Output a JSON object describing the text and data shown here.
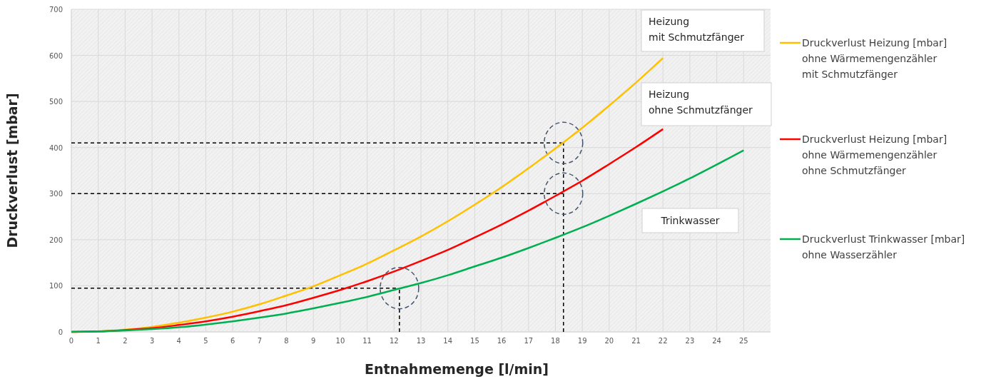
{
  "chart_data": {
    "type": "line",
    "xlabel": "Entnahmemenge [l/min]",
    "ylabel": "Druckverlust [mbar]",
    "xlim": [
      0,
      26
    ],
    "xticks": [
      0,
      1,
      2,
      3,
      4,
      5,
      6,
      7,
      8,
      9,
      10,
      11,
      12,
      13,
      14,
      15,
      16,
      17,
      18,
      19,
      20,
      21,
      22,
      23,
      24,
      25
    ],
    "ylim": [
      0,
      700
    ],
    "yticks": [
      0,
      100,
      200,
      300,
      400,
      500,
      600,
      700
    ],
    "grid": true,
    "legend": "right",
    "marker": "none",
    "line_style": "solid",
    "series": [
      {
        "name": "Druckverlust Heizung [mbar]\nohne Wärmemengenzähler\nmit Schmutzfänger",
        "color": "#ffc000",
        "x": [
          0,
          1,
          2,
          3,
          4,
          5,
          6,
          7,
          8,
          9,
          10,
          11,
          12,
          13,
          14,
          15,
          16,
          17,
          18,
          19,
          20,
          21,
          22
        ],
        "values": [
          0,
          1,
          5,
          11,
          20,
          31,
          44,
          60,
          79,
          99,
          123,
          148,
          177,
          207,
          240,
          276,
          314,
          355,
          398,
          443,
          491,
          541,
          594
        ]
      },
      {
        "name": "Druckverlust Heizung [mbar]\nohne Wärmemengenzähler\nohne Schmutzfänger",
        "color": "#ff0000",
        "x": [
          0,
          1,
          2,
          3,
          4,
          5,
          6,
          7,
          8,
          9,
          10,
          11,
          12,
          13,
          14,
          15,
          16,
          17,
          18,
          19,
          20,
          21,
          22
        ],
        "values": [
          0,
          1,
          4,
          8,
          15,
          23,
          33,
          45,
          58,
          74,
          91,
          110,
          131,
          154,
          178,
          205,
          233,
          263,
          295,
          328,
          364,
          401,
          440
        ]
      },
      {
        "name": "Druckverlust Trinkwasser [mbar]\nohne Wasserzähler",
        "color": "#00b050",
        "x": [
          0,
          1,
          2,
          3,
          4,
          5,
          6,
          7,
          8,
          9,
          10,
          11,
          12,
          13,
          14,
          15,
          16,
          17,
          18,
          19,
          20,
          21,
          22,
          23,
          24,
          25
        ],
        "values": [
          0,
          1,
          3,
          6,
          10,
          16,
          23,
          31,
          40,
          51,
          63,
          76,
          91,
          106,
          123,
          142,
          161,
          182,
          204,
          227,
          252,
          278,
          305,
          333,
          363,
          394
        ]
      }
    ],
    "ref_lines": [
      {
        "axis": "y",
        "value": 410,
        "color": "#000000",
        "line_style": "dashed"
      },
      {
        "axis": "y",
        "value": 300,
        "color": "#000000",
        "line_style": "dashed"
      },
      {
        "axis": "y",
        "value": 95,
        "color": "#000000",
        "line_style": "dashed"
      },
      {
        "axis": "x",
        "value": 18.3,
        "color": "#000000",
        "line_style": "dashed"
      },
      {
        "axis": "x",
        "value": 12.2,
        "color": "#000000",
        "line_style": "dashed"
      }
    ],
    "annotations": [
      "Heizung\nmit Schmutzfänger",
      "Heizung\nohne Schmutzfänger",
      "Trinkwasser"
    ]
  }
}
